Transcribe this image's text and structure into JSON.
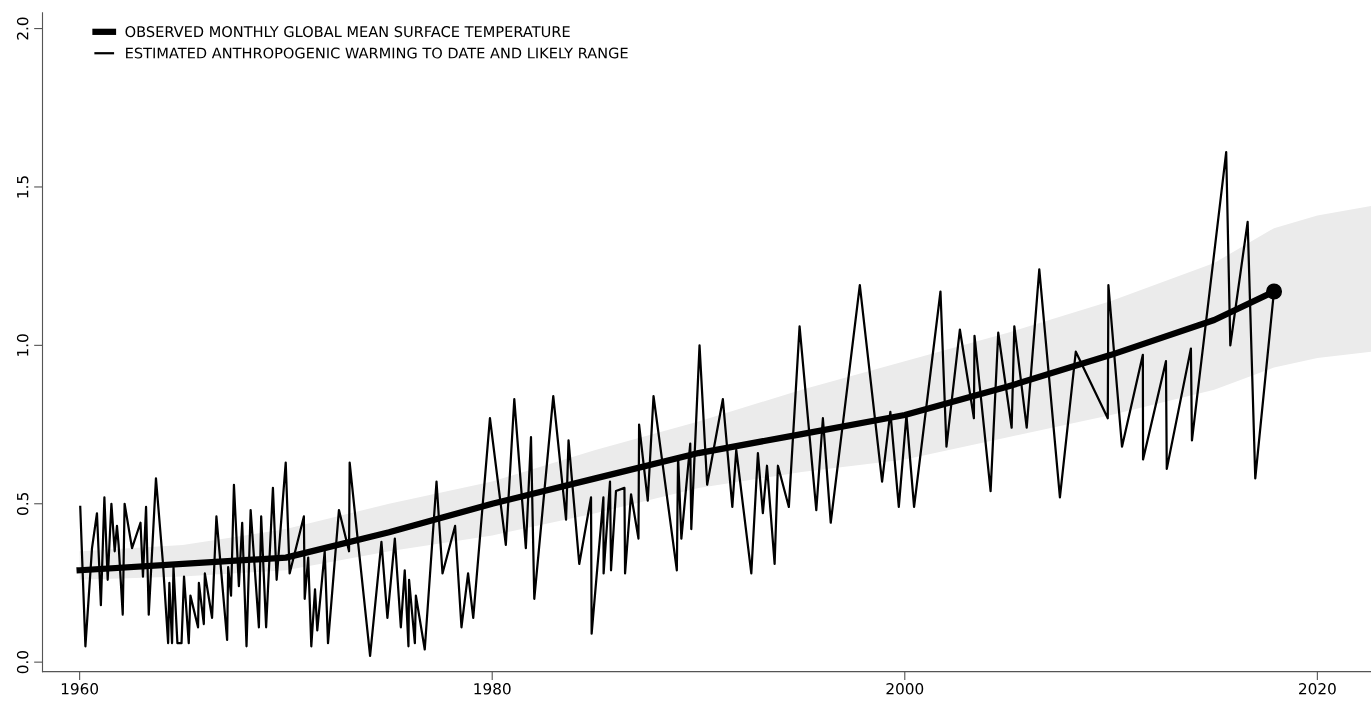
{
  "chart_data": {
    "type": "line",
    "xlim": [
      1958.2,
      2022.6
    ],
    "ylim": [
      -0.03,
      2.05
    ],
    "xticks": [
      1960,
      1980,
      2000,
      2020
    ],
    "yticks": [
      {
        "value": 0,
        "label": "0.0"
      },
      {
        "value": 0.5,
        "label": "0.5"
      },
      {
        "value": 1,
        "label": "1.0"
      },
      {
        "value": 1.5,
        "label": "1.5"
      },
      {
        "value": 2,
        "label": "2.0"
      }
    ],
    "grid": false,
    "legend": "top left",
    "marker": "none",
    "line_style": "solid",
    "series": [
      {
        "name": "OBSERVED MONTHLY GLOBAL MEAN SURFACE TEMPERATURE",
        "color": "#000000",
        "x": [
          1960,
          1965,
          1970,
          1975,
          1980,
          1985,
          1990,
          1995,
          2000,
          2005,
          2010,
          2015,
          2017.9,
          2020,
          2022.6
        ],
        "values": [
          0.29,
          0.31,
          0.33,
          0.41,
          0.5,
          0.58,
          0.66,
          0.72,
          0.78,
          0.87,
          0.97,
          1.08,
          1.17,
          null,
          null
        ],
        "lower": [
          0.26,
          0.27,
          0.29,
          0.35,
          0.4,
          0.47,
          0.55,
          0.6,
          0.64,
          0.71,
          0.78,
          0.86,
          0.93,
          0.96,
          0.98
        ],
        "upper": [
          0.35,
          0.37,
          0.42,
          0.5,
          0.57,
          0.67,
          0.76,
          0.86,
          0.95,
          1.04,
          1.14,
          1.26,
          1.37,
          1.41,
          1.44
        ]
      },
      {
        "name": "ESTIMATED ANTHROPOGENIC WARMING TO DATE AND LIKELY RANGE",
        "color": "#000000",
        "x": [
          1960.03,
          1960.28,
          1960.6,
          1960.84,
          1961.03,
          1961.2,
          1961.36,
          1961.54,
          1961.7,
          1961.81,
          1961.89,
          1962.09,
          1962.18,
          1962.54,
          1962.95,
          1963.07,
          1963.22,
          1963.35,
          1963.7,
          1964.03,
          1964.29,
          1964.35,
          1964.48,
          1964.55,
          1964.74,
          1964.94,
          1965.06,
          1965.29,
          1965.37,
          1965.74,
          1965.78,
          1966.02,
          1966.07,
          1966.42,
          1966.63,
          1967.15,
          1967.2,
          1967.34,
          1967.48,
          1967.72,
          1967.88,
          1968.09,
          1968.29,
          1968.69,
          1968.8,
          1969.04,
          1969.37,
          1969.55,
          1969.99,
          1970.18,
          1970.87,
          1970.91,
          1971.08,
          1971.23,
          1971.41,
          1971.52,
          1971.88,
          1972.04,
          1972.57,
          1973.06,
          1973.09,
          1973.46,
          1974.08,
          1974.63,
          1974.92,
          1975.28,
          1975.57,
          1975.76,
          1975.94,
          1975.97,
          1976.25,
          1976.3,
          1976.73,
          1977.3,
          1977.59,
          1978.2,
          1978.51,
          1978.83,
          1979.08,
          1979.89,
          1980.66,
          1981.07,
          1981.63,
          1981.88,
          1982.04,
          1982.96,
          1983.58,
          1983.7,
          1984.22,
          1984.79,
          1984.82,
          1985.39,
          1985.4,
          1985.71,
          1985.76,
          1986,
          1986.41,
          1986.44,
          1986.73,
          1987.09,
          1987.12,
          1987.54,
          1987.82,
          1988.95,
          1989.01,
          1989.17,
          1989.6,
          1989.65,
          1990.05,
          1990.42,
          1991.18,
          1991.64,
          1991.83,
          1992.56,
          1992.88,
          1993.12,
          1993.32,
          1993.69,
          1993.85,
          1994.38,
          1994.9,
          1995.71,
          1996.03,
          1996.41,
          1997.82,
          1998.9,
          1999.3,
          1999.71,
          2000.08,
          2000.45,
          2001.73,
          2002.02,
          2002.67,
          2003.35,
          2003.38,
          2004.16,
          2004.53,
          2005.18,
          2005.31,
          2005.91,
          2006.52,
          2007.52,
          2008.29,
          2009.84,
          2009.87,
          2010.53,
          2011.54,
          2011.55,
          2012.66,
          2012.7,
          2013.87,
          2013.92,
          2015.58,
          2015.78,
          2016.62,
          2016.99,
          2017.88
        ],
        "values": [
          0.49,
          0.05,
          0.36,
          0.47,
          0.18,
          0.52,
          0.26,
          0.5,
          0.35,
          0.43,
          0.37,
          0.15,
          0.5,
          0.36,
          0.44,
          0.27,
          0.49,
          0.15,
          0.58,
          0.32,
          0.06,
          0.25,
          0.06,
          0.3,
          0.06,
          0.06,
          0.27,
          0.06,
          0.21,
          0.11,
          0.25,
          0.12,
          0.28,
          0.14,
          0.46,
          0.07,
          0.3,
          0.21,
          0.56,
          0.24,
          0.44,
          0.05,
          0.48,
          0.11,
          0.46,
          0.11,
          0.55,
          0.26,
          0.63,
          0.28,
          0.46,
          0.2,
          0.33,
          0.05,
          0.23,
          0.1,
          0.35,
          0.06,
          0.48,
          0.35,
          0.63,
          0.4,
          0.02,
          0.38,
          0.14,
          0.39,
          0.11,
          0.29,
          0.05,
          0.26,
          0.06,
          0.21,
          0.04,
          0.57,
          0.28,
          0.43,
          0.11,
          0.28,
          0.14,
          0.77,
          0.37,
          0.83,
          0.36,
          0.71,
          0.2,
          0.84,
          0.45,
          0.7,
          0.31,
          0.52,
          0.09,
          0.52,
          0.28,
          0.57,
          0.29,
          0.54,
          0.55,
          0.28,
          0.53,
          0.39,
          0.75,
          0.51,
          0.84,
          0.29,
          0.65,
          0.39,
          0.69,
          0.42,
          1.0,
          0.56,
          0.83,
          0.49,
          0.67,
          0.28,
          0.66,
          0.47,
          0.62,
          0.31,
          0.62,
          0.49,
          1.06,
          0.48,
          0.77,
          0.44,
          1.19,
          0.57,
          0.79,
          0.49,
          0.78,
          0.49,
          1.17,
          0.68,
          1.05,
          0.77,
          1.03,
          0.54,
          1.04,
          0.74,
          1.06,
          0.74,
          1.24,
          0.52,
          0.98,
          0.77,
          1.19,
          0.68,
          0.97,
          0.64,
          0.95,
          0.61,
          0.99,
          0.7,
          1.61,
          1.0,
          1.39,
          0.58,
          1.16
        ]
      },
      {
        "type": "scatter",
        "color": "#000000",
        "marker": "circle",
        "x": [
          2017.9
        ],
        "values": [
          1.17
        ]
      }
    ]
  }
}
